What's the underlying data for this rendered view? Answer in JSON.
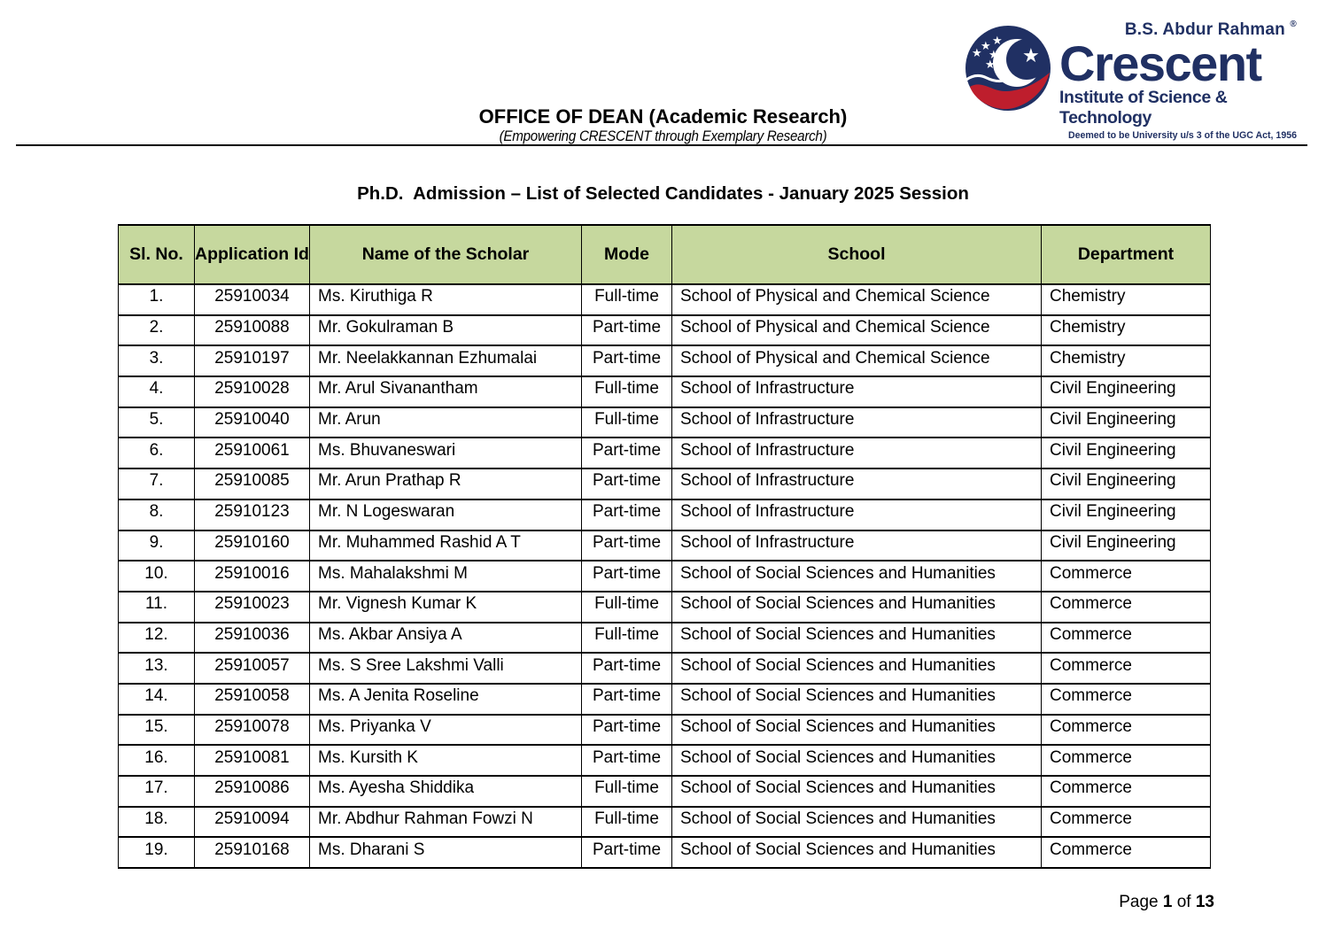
{
  "logo": {
    "brand_top": "B.S. Abdur Rahman",
    "registered_mark": "®",
    "brand_name": "Crescent",
    "brand_sub": "Institute of Science & Technology",
    "brand_tagline": "Deemed to be University u/s 3 of the UGC Act, 1956",
    "colors": {
      "navy": "#203063",
      "red": "#be1e2d"
    }
  },
  "letterhead": {
    "office_line": "OFFICE OF DEAN (Academic Research)",
    "tagline": "(Empowering CRESCENT through Exemplary Research)"
  },
  "document": {
    "title": "Ph.D.  Admission – List of Selected Candidates - January 2025 Session"
  },
  "table": {
    "header_bg": "#c6d89e",
    "headers": [
      "Sl. No.",
      "Application Id",
      "Name of the Scholar",
      "Mode",
      "School",
      "Department"
    ],
    "rows": [
      [
        "1.",
        "25910034",
        "Ms. Kiruthiga R",
        "Full-time",
        "School of Physical and Chemical Science",
        "Chemistry"
      ],
      [
        "2.",
        "25910088",
        "Mr. Gokulraman B",
        "Part-time",
        "School of Physical and Chemical Science",
        "Chemistry"
      ],
      [
        "3.",
        "25910197",
        "Mr. Neelakkannan Ezhumalai",
        "Part-time",
        "School of Physical and Chemical Science",
        "Chemistry"
      ],
      [
        "4.",
        "25910028",
        "Mr. Arul Sivanantham",
        "Full-time",
        "School of Infrastructure",
        "Civil Engineering"
      ],
      [
        "5.",
        "25910040",
        "Mr. Arun",
        "Full-time",
        "School of Infrastructure",
        "Civil Engineering"
      ],
      [
        "6.",
        "25910061",
        "Ms. Bhuvaneswari",
        "Part-time",
        "School of Infrastructure",
        "Civil Engineering"
      ],
      [
        "7.",
        "25910085",
        "Mr. Arun Prathap R",
        "Part-time",
        "School of Infrastructure",
        "Civil Engineering"
      ],
      [
        "8.",
        "25910123",
        "Mr. N Logeswaran",
        "Part-time",
        "School of Infrastructure",
        "Civil Engineering"
      ],
      [
        "9.",
        "25910160",
        "Mr. Muhammed Rashid A T",
        "Part-time",
        "School of Infrastructure",
        "Civil Engineering"
      ],
      [
        "10.",
        "25910016",
        "Ms. Mahalakshmi M",
        "Part-time",
        "School of Social Sciences and Humanities",
        "Commerce"
      ],
      [
        "11.",
        "25910023",
        "Mr. Vignesh Kumar K",
        "Full-time",
        "School of Social Sciences and Humanities",
        "Commerce"
      ],
      [
        "12.",
        "25910036",
        "Ms. Akbar Ansiya A",
        "Full-time",
        "School of Social Sciences and Humanities",
        "Commerce"
      ],
      [
        "13.",
        "25910057",
        "Ms. S Sree Lakshmi Valli",
        "Part-time",
        "School of Social Sciences and Humanities",
        "Commerce"
      ],
      [
        "14.",
        "25910058",
        "Ms. A Jenita Roseline",
        "Part-time",
        "School of Social Sciences and Humanities",
        "Commerce"
      ],
      [
        "15.",
        "25910078",
        "Ms. Priyanka V",
        "Part-time",
        "School of Social Sciences and Humanities",
        "Commerce"
      ],
      [
        "16.",
        "25910081",
        "Ms. Kursith K",
        "Part-time",
        "School of Social Sciences and Humanities",
        "Commerce"
      ],
      [
        "17.",
        "25910086",
        "Ms. Ayesha Shiddika",
        "Full-time",
        "School of Social Sciences and Humanities",
        "Commerce"
      ],
      [
        "18.",
        "25910094",
        "Mr. Abdhur Rahman Fowzi N",
        "Full-time",
        "School of Social Sciences and Humanities",
        "Commerce"
      ],
      [
        "19.",
        "25910168",
        "Ms. Dharani S",
        "Part-time",
        "School of Social Sciences and Humanities",
        "Commerce"
      ]
    ]
  },
  "footer": {
    "page_label": "Page",
    "page_number": "1",
    "of_label": "of",
    "total_pages": "13"
  }
}
